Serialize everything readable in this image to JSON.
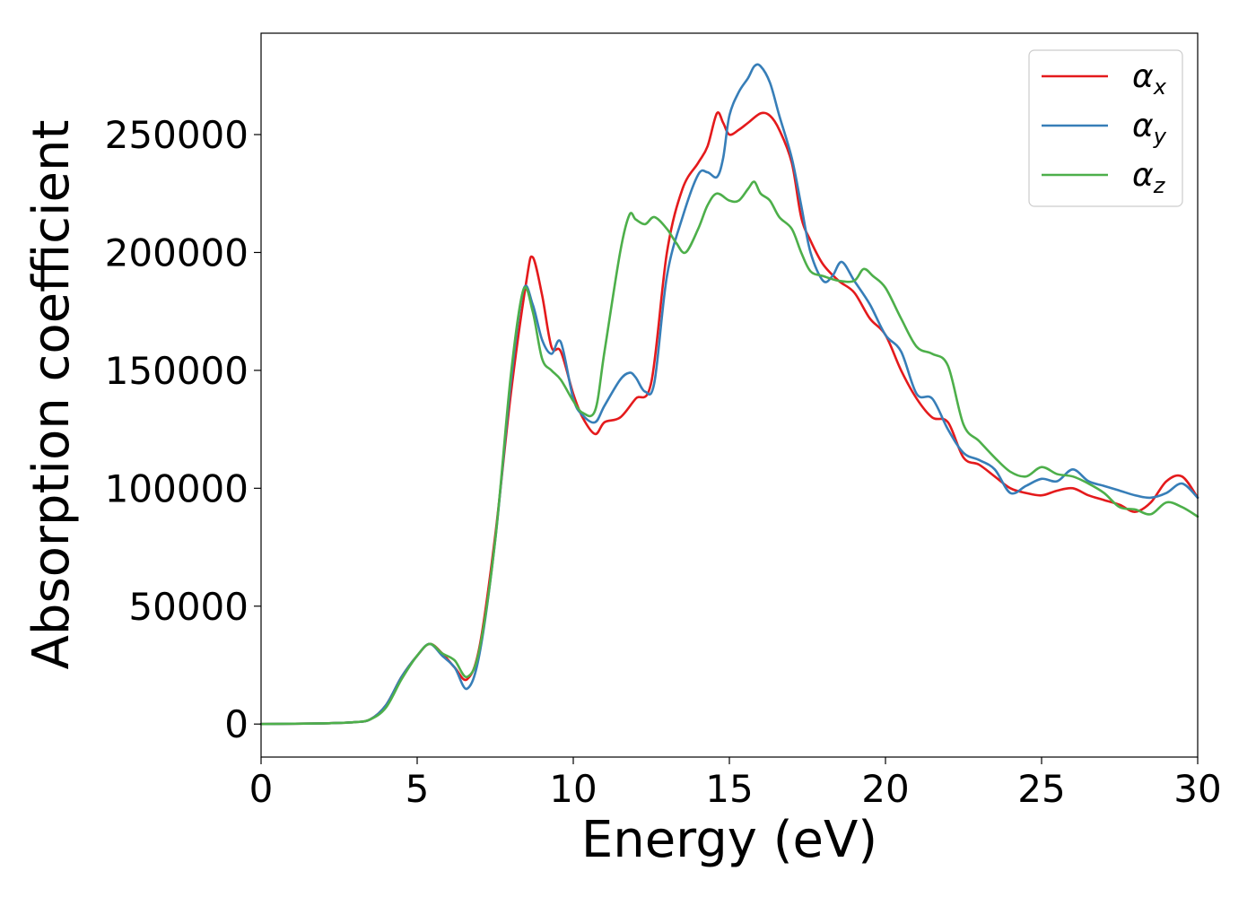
{
  "chart_data": {
    "type": "line",
    "xlabel": "Energy (eV)",
    "ylabel": "Absorption coefficient",
    "xlim": [
      0,
      30
    ],
    "ylim": [
      -14000,
      293000
    ],
    "x_ticks": [
      0,
      5,
      10,
      15,
      20,
      25,
      30
    ],
    "x_tick_labels": [
      "0",
      "5",
      "10",
      "15",
      "20",
      "25",
      "30"
    ],
    "y_ticks": [
      0,
      50000,
      100000,
      150000,
      200000,
      250000
    ],
    "y_tick_labels": [
      "0",
      "50000",
      "100000",
      "150000",
      "200000",
      "250000"
    ],
    "grid": false,
    "legend_position": "top-right",
    "series": [
      {
        "name": "α_x",
        "legend_base": "α",
        "legend_sub": "x",
        "color": "#e41a1c",
        "x": [
          0,
          2,
          3,
          3.5,
          4,
          4.5,
          5,
          5.4,
          5.8,
          6.2,
          6.6,
          7,
          7.5,
          8,
          8.5,
          8.7,
          9,
          9.3,
          9.6,
          10,
          10.3,
          10.7,
          11,
          11.5,
          12,
          12.5,
          13,
          13.5,
          14,
          14.3,
          14.6,
          14.8,
          15,
          15.3,
          15.6,
          16,
          16.3,
          16.6,
          17,
          17.3,
          17.6,
          18,
          18.5,
          19,
          19.5,
          20,
          20.5,
          21,
          21.5,
          22,
          22.5,
          23,
          23.5,
          24,
          24.5,
          25,
          25.5,
          26,
          26.5,
          27,
          27.5,
          28,
          28.5,
          29,
          29.5,
          30
        ],
        "y": [
          0,
          300,
          800,
          2000,
          8000,
          20000,
          29000,
          34000,
          30000,
          24000,
          19000,
          33000,
          80000,
          140000,
          188000,
          198000,
          182000,
          160000,
          158000,
          140000,
          130000,
          123000,
          128000,
          130000,
          138000,
          145000,
          200000,
          227000,
          238000,
          245000,
          259000,
          255000,
          250000,
          252000,
          255000,
          259000,
          258000,
          252000,
          238000,
          215000,
          205000,
          195000,
          188000,
          183000,
          172000,
          165000,
          150000,
          138000,
          130000,
          128000,
          113000,
          110000,
          105000,
          100000,
          98000,
          97000,
          99000,
          100000,
          97000,
          95000,
          93000,
          90000,
          94000,
          103000,
          105000,
          96000
        ]
      },
      {
        "name": "α_y",
        "legend_base": "α",
        "legend_sub": "y",
        "color": "#377eb8",
        "x": [
          0,
          2,
          3,
          3.5,
          4,
          4.5,
          5,
          5.4,
          5.8,
          6.2,
          6.6,
          7,
          7.5,
          8,
          8.4,
          8.7,
          9,
          9.3,
          9.6,
          10,
          10.3,
          10.7,
          11,
          11.5,
          11.8,
          12,
          12.3,
          12.6,
          13,
          13.5,
          14,
          14.3,
          14.6,
          14.8,
          15,
          15.3,
          15.6,
          15.8,
          16,
          16.3,
          16.6,
          17,
          17.3,
          17.6,
          18,
          18.3,
          18.6,
          19,
          19.5,
          20,
          20.5,
          21,
          21.5,
          22,
          22.5,
          23,
          23.5,
          24,
          24.5,
          25,
          25.5,
          26,
          26.5,
          27,
          27.5,
          28,
          28.5,
          29,
          29.5,
          30
        ],
        "y": [
          0,
          300,
          800,
          2000,
          8000,
          20000,
          29000,
          34000,
          29000,
          24000,
          15000,
          30000,
          78000,
          145000,
          184000,
          178000,
          163000,
          157000,
          162000,
          138000,
          131000,
          128000,
          135000,
          146000,
          149000,
          147000,
          141000,
          145000,
          190000,
          215000,
          233000,
          234000,
          232000,
          240000,
          258000,
          268000,
          274000,
          279000,
          279000,
          272000,
          258000,
          240000,
          220000,
          200000,
          188000,
          190000,
          196000,
          188000,
          178000,
          165000,
          158000,
          140000,
          138000,
          125000,
          115000,
          112000,
          108000,
          98000,
          101000,
          104000,
          103000,
          108000,
          103000,
          101000,
          99000,
          97000,
          96000,
          98000,
          102000,
          96000
        ]
      },
      {
        "name": "α_z",
        "legend_base": "α",
        "legend_sub": "z",
        "color": "#4daf4a",
        "x": [
          0,
          2,
          3,
          3.5,
          4,
          4.5,
          5,
          5.4,
          5.8,
          6.2,
          6.6,
          7,
          7.5,
          8,
          8.4,
          8.7,
          9,
          9.3,
          9.6,
          10,
          10.3,
          10.7,
          11,
          11.5,
          11.8,
          12,
          12.3,
          12.6,
          13,
          13.3,
          13.6,
          14,
          14.3,
          14.6,
          15,
          15.3,
          15.6,
          15.8,
          16,
          16.3,
          16.6,
          17,
          17.3,
          17.6,
          18,
          18.5,
          19,
          19.3,
          19.6,
          20,
          20.5,
          21,
          21.5,
          22,
          22.5,
          23,
          23.5,
          24,
          24.5,
          25,
          25.5,
          26,
          26.5,
          27,
          27.5,
          28,
          28.5,
          29,
          29.5,
          30
        ],
        "y": [
          0,
          300,
          800,
          2000,
          7000,
          19000,
          29000,
          34000,
          30000,
          27000,
          20000,
          32000,
          78000,
          148000,
          184000,
          175000,
          155000,
          150000,
          146000,
          137000,
          132000,
          133000,
          158000,
          200000,
          216000,
          214000,
          212000,
          215000,
          210000,
          204000,
          200000,
          210000,
          220000,
          225000,
          222000,
          222000,
          227000,
          230000,
          225000,
          222000,
          215000,
          210000,
          200000,
          192000,
          190000,
          188000,
          188000,
          193000,
          190000,
          185000,
          172000,
          160000,
          157000,
          152000,
          127000,
          120000,
          113000,
          107000,
          105000,
          109000,
          106000,
          105000,
          102000,
          98000,
          92000,
          91000,
          89000,
          94000,
          92000,
          88000
        ]
      }
    ]
  }
}
